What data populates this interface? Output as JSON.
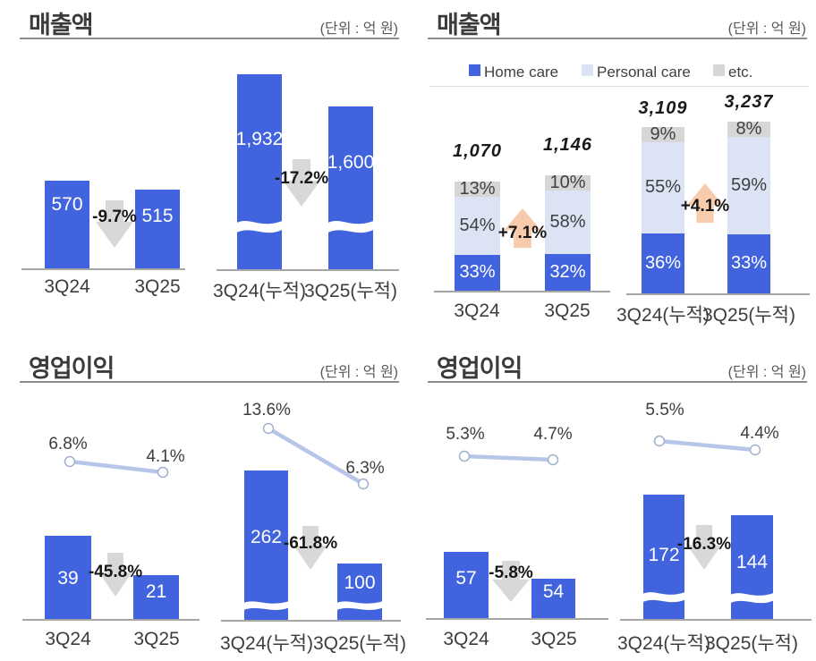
{
  "colors": {
    "bar_blue": "#4164DE",
    "personal_light": "#DBE3F4",
    "etc_gray": "#D6D6D6",
    "arrow_down_gray": "#D8D8D8",
    "arrow_up_orange": "#F8CBAD",
    "trend_line": "#B7C6E8",
    "marker_stroke": "#9FB0CC",
    "axis_gray": "#A6A6A6"
  },
  "chart_data": [
    {
      "id": "revenue-quarterly",
      "type": "bar",
      "title": "매출액",
      "unit_label": "(단위 : 억 원)",
      "groups": [
        {
          "change": "-9.7%",
          "bars": [
            {
              "category": "3Q24",
              "value": 570,
              "label": "570"
            },
            {
              "category": "3Q25",
              "value": 515,
              "label": "515"
            }
          ]
        },
        {
          "change": "-17.2%",
          "bars": [
            {
              "category": "3Q24(누적)",
              "value": 1932,
              "label": "1,932",
              "axis_break": true
            },
            {
              "category": "3Q25(누적)",
              "value": 1600,
              "label": "1,600",
              "axis_break": true
            }
          ]
        }
      ]
    },
    {
      "id": "revenue-by-segment",
      "type": "stacked-bar",
      "title": "매출액",
      "unit_label": "(단위 : 억 원)",
      "legend": [
        {
          "label": "Home care",
          "color": "#4164DE"
        },
        {
          "label": "Personal care",
          "color": "#DBE3F4"
        },
        {
          "label": "etc.",
          "color": "#D6D6D6"
        }
      ],
      "groups": [
        {
          "change": "+7.1%",
          "bars": [
            {
              "category": "3Q24",
              "total": "1,070",
              "segments": [
                {
                  "name": "Home care",
                  "pct": "33%"
                },
                {
                  "name": "Personal care",
                  "pct": "54%"
                },
                {
                  "name": "etc.",
                  "pct": "13%"
                }
              ]
            },
            {
              "category": "3Q25",
              "total": "1,146",
              "segments": [
                {
                  "name": "Home care",
                  "pct": "32%"
                },
                {
                  "name": "Personal care",
                  "pct": "58%"
                },
                {
                  "name": "etc.",
                  "pct": "10%"
                }
              ]
            }
          ]
        },
        {
          "change": "+4.1%",
          "bars": [
            {
              "category": "3Q24(누적)",
              "total": "3,109",
              "segments": [
                {
                  "name": "Home care",
                  "pct": "36%"
                },
                {
                  "name": "Personal care",
                  "pct": "55%"
                },
                {
                  "name": "etc.",
                  "pct": "9%"
                }
              ]
            },
            {
              "category": "3Q25(누적)",
              "total": "3,237",
              "segments": [
                {
                  "name": "Home care",
                  "pct": "33%"
                },
                {
                  "name": "Personal care",
                  "pct": "59%"
                },
                {
                  "name": "etc.",
                  "pct": "8%"
                }
              ]
            }
          ]
        }
      ]
    },
    {
      "id": "operating-profit-left",
      "type": "bar+line",
      "title": "영업이익",
      "unit_label": "(단위 : 억 원)",
      "groups": [
        {
          "change": "-45.8%",
          "bars": [
            {
              "category": "3Q24",
              "value": 39,
              "label": "39",
              "margin": "6.8%"
            },
            {
              "category": "3Q25",
              "value": 21,
              "label": "21",
              "margin": "4.1%"
            }
          ]
        },
        {
          "change": "-61.8%",
          "bars": [
            {
              "category": "3Q24(누적)",
              "value": 262,
              "label": "262",
              "margin": "13.6%",
              "axis_break": true
            },
            {
              "category": "3Q25(누적)",
              "value": 100,
              "label": "100",
              "margin": "6.3%",
              "axis_break": true
            }
          ]
        }
      ]
    },
    {
      "id": "operating-profit-right",
      "type": "bar+line",
      "title": "영업이익",
      "unit_label": "(단위 : 억 원)",
      "groups": [
        {
          "change": "-5.8%",
          "bars": [
            {
              "category": "3Q24",
              "value": 57,
              "label": "57",
              "margin": "5.3%"
            },
            {
              "category": "3Q25",
              "value": 54,
              "label": "54",
              "margin": "4.7%"
            }
          ]
        },
        {
          "change": "-16.3%",
          "bars": [
            {
              "category": "3Q24(누적)",
              "value": 172,
              "label": "172",
              "margin": "5.5%",
              "axis_break": true
            },
            {
              "category": "3Q25(누적)",
              "value": 144,
              "label": "144",
              "margin": "4.4%",
              "axis_break": true
            }
          ]
        }
      ]
    }
  ]
}
